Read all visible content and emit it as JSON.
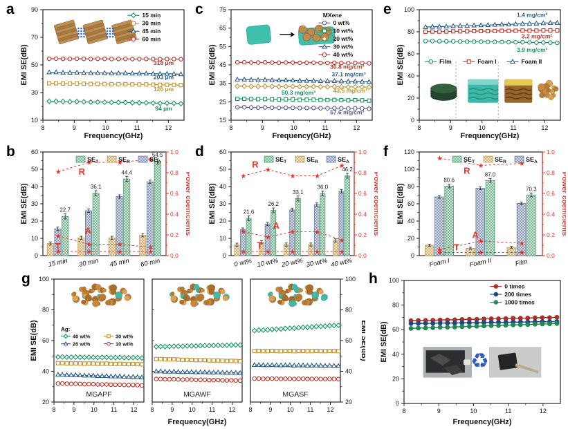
{
  "figure_title": "EMI shielding performance multi-panel figure",
  "axis": {
    "xlabel": "Frequency(GHz)",
    "ylabel": "EMI SE(dB)",
    "right_label": "Power coefficients"
  },
  "colors": {
    "green": "#15965f",
    "gold": "#c2932f",
    "blue": "#2a5d8c",
    "red": "#bf352b",
    "navy": "#5b5c92",
    "power_red": "#e8352a",
    "bar_green": "#4e9d6f",
    "bar_gold": "#c09a4c",
    "bar_blue": "#64799c",
    "h_red": "#a93026",
    "h_blue": "#1f4788",
    "h_green": "#1e8a4f"
  },
  "chart_data": [
    {
      "panel": "a",
      "letter": "a",
      "type": "line",
      "xlabel": "Frequency(GHz)",
      "ylabel": "EMI SE(dB)",
      "xlim": [
        8,
        12.5
      ],
      "xticks": [
        8,
        9,
        10,
        11,
        12
      ],
      "ylim": [
        10,
        90
      ],
      "yticks": [
        10,
        30,
        50,
        70,
        90
      ],
      "x_start": 8.2,
      "x_end": 12.4,
      "n_points": 20,
      "series": [
        {
          "name": "60 min",
          "marker": "circle",
          "color": "#bf352b",
          "y_start": 54.5,
          "y_end": 54.2
        },
        {
          "name": "45 min",
          "marker": "triangle",
          "color": "#2a5d8c",
          "y_start": 44.7,
          "y_end": 43.4
        },
        {
          "name": "30 min",
          "marker": "square",
          "color": "#c2932f",
          "y_start": 36.7,
          "y_end": 35.5
        },
        {
          "name": "15 min",
          "marker": "diamond",
          "color": "#15965f",
          "y_start": 23.7,
          "y_end": 22.1
        }
      ],
      "legend": {
        "fx": 0.6,
        "fy": 0.02,
        "order": [
          3,
          2,
          1,
          0
        ]
      },
      "annotations": [
        {
          "text": "318 μm",
          "x": 11.85,
          "y": 50.0,
          "color": "#bf352b"
        },
        {
          "text": "203 μm",
          "x": 11.85,
          "y": 39.8,
          "color": "#2a5d8c"
        },
        {
          "text": "126 μm",
          "x": 11.85,
          "y": 31.0,
          "color": "#c2932f"
        },
        {
          "text": "94 μm",
          "x": 11.85,
          "y": 17.0,
          "color": "#15965f"
        }
      ],
      "inset": "stacks"
    },
    {
      "panel": "b",
      "letter": "b",
      "type": "bar",
      "ylabel": "EMI SE(dB)",
      "ylabel_right": "Power coefficients",
      "ylim": [
        0,
        60
      ],
      "yticks": [
        0,
        10,
        20,
        30,
        40,
        50,
        60
      ],
      "right_ticks": [
        "0.0",
        "0.2",
        "0.4",
        "0.6",
        "0.8",
        "1.0"
      ],
      "categories": [
        "15 min",
        "30 min",
        "45 min",
        "60 min"
      ],
      "series": [
        {
          "name": "SE",
          "sub": "R",
          "color": "#c09a4c",
          "values": [
            7.0,
            10.3,
            10.3,
            11.8
          ],
          "err": 0.9
        },
        {
          "name": "SE",
          "sub": "A",
          "color": "#64799c",
          "values": [
            15.5,
            26.0,
            34.2,
            42.7
          ],
          "err": 1.0
        },
        {
          "name": "SE",
          "sub": "T",
          "color": "#4e9d6f",
          "values": [
            22.7,
            36.1,
            44.4,
            54.5
          ],
          "err": 1.5
        }
      ],
      "legend_order": [
        2,
        0,
        1
      ],
      "bar_labels": [
        "22.7",
        "36.1",
        "44.4",
        "54.5"
      ],
      "power": {
        "R": [
          0.81,
          0.9,
          0.9,
          0.93
        ],
        "A": [
          0.19,
          0.11,
          0.11,
          0.08
        ],
        "T": [
          0.04,
          0.04,
          0.04,
          0.04
        ]
      },
      "power_letters": [
        {
          "text": "R",
          "fx": 0.29,
          "fy": 0.78
        },
        {
          "text": "A",
          "fx": 0.34,
          "fy": 0.21
        },
        {
          "text": "T",
          "fx": 0.1,
          "fy": 0.06
        }
      ]
    },
    {
      "panel": "c",
      "letter": "c",
      "type": "line",
      "xlabel": "Frequency(GHz)",
      "ylabel": "EMI SE(dB)",
      "xlim": [
        8,
        12.5
      ],
      "xticks": [
        8,
        9,
        10,
        11,
        12
      ],
      "ylim": [
        15,
        75
      ],
      "yticks": [
        15,
        25,
        35,
        45,
        55,
        65,
        75
      ],
      "x_start": 8.2,
      "x_end": 12.4,
      "n_points": 20,
      "series": [
        {
          "name": "40 wt%",
          "marker": "circle",
          "color": "#bf352b",
          "y_start": 46.4,
          "y_end": 46.0
        },
        {
          "name": "30 wt%",
          "marker": "triangle",
          "color": "#2a5d8c",
          "y_start": 37.1,
          "y_end": 35.9
        },
        {
          "name": "20 wt%",
          "marker": "diamond",
          "color": "#c2932f",
          "y_start": 33.4,
          "y_end": 33.0
        },
        {
          "name": "10 wt%",
          "marker": "square",
          "color": "#15965f",
          "y_start": 26.6,
          "y_end": 25.7
        },
        {
          "name": "0 wt%",
          "marker": "circle",
          "color": "#5b5c92",
          "y_start": 22.0,
          "y_end": 21.3
        }
      ],
      "legend": {
        "fx": 0.62,
        "fy": 0.02,
        "title": "MXene",
        "order": [
          4,
          3,
          2,
          1,
          0
        ]
      },
      "annotations": [
        {
          "text": "30.8 mg/cm³",
          "x": 11.7,
          "y": 43.0,
          "color": "#bf352b"
        },
        {
          "text": "37.1 mg/cm³",
          "x": 11.75,
          "y": 38.9,
          "color": "#2a5d8c"
        },
        {
          "text": "43.5 mg/cm³",
          "x": 11.8,
          "y": 30.0,
          "color": "#c2932f"
        },
        {
          "text": "50.3 mg/cm³",
          "x": 10.15,
          "y": 28.8,
          "color": "#15965f"
        },
        {
          "text": "57.6 mg/cm³",
          "x": 11.7,
          "y": 18.2,
          "color": "#5b5c92"
        }
      ],
      "inset": "mxene"
    },
    {
      "panel": "d",
      "letter": "d",
      "type": "bar",
      "ylabel": "EMI SE(dB)",
      "ylabel_right": "Power coefficients",
      "ylim": [
        0,
        60
      ],
      "yticks": [
        0,
        10,
        20,
        30,
        40,
        50,
        60
      ],
      "right_ticks": [
        "0.0",
        "0.2",
        "0.4",
        "0.6",
        "0.8",
        "1.0"
      ],
      "categories": [
        "0 wt%",
        "10 wt%",
        "20 wt%",
        "30 wt%",
        "40 wt%"
      ],
      "series": [
        {
          "name": "SE",
          "sub": "R",
          "color": "#c09a4c",
          "values": [
            6.3,
            7.7,
            6.4,
            6.4,
            8.8
          ],
          "err": 0.9
        },
        {
          "name": "SE",
          "sub": "A",
          "color": "#64799c",
          "values": [
            15.0,
            18.3,
            26.5,
            29.5,
            37.3
          ],
          "err": 1.0
        },
        {
          "name": "SE",
          "sub": "T",
          "color": "#4e9d6f",
          "values": [
            21.6,
            26.2,
            33.1,
            36.0,
            46.2
          ],
          "err": 1.4
        }
      ],
      "legend_order": [
        2,
        0,
        1
      ],
      "bar_labels": [
        "21.6",
        "26.2",
        "33.1",
        "36.0",
        "46.2"
      ],
      "power": {
        "R": [
          0.77,
          0.83,
          0.77,
          0.77,
          0.87
        ],
        "A": [
          0.23,
          0.18,
          0.23,
          0.23,
          0.15
        ],
        "T": [
          0.04,
          0.04,
          0.04,
          0.04,
          0.04
        ]
      },
      "power_letters": [
        {
          "text": "R",
          "fx": 0.17,
          "fy": 0.85
        },
        {
          "text": "A",
          "fx": 0.34,
          "fy": 0.26
        },
        {
          "text": "T",
          "fx": 0.21,
          "fy": 0.07
        }
      ]
    },
    {
      "panel": "e",
      "letter": "e",
      "type": "line",
      "xlabel": "Frequency(GHz)",
      "ylabel": "EMI SE(dB)",
      "xlim": [
        8,
        12.5
      ],
      "xticks": [
        8,
        9,
        10,
        11,
        12
      ],
      "ylim": [
        0,
        100
      ],
      "yticks": [
        0,
        20,
        40,
        60,
        80,
        100
      ],
      "x_start": 8.2,
      "x_end": 12.4,
      "n_points": 20,
      "series": [
        {
          "name": "Foam II",
          "marker": "triangle",
          "color": "#2a5d8c",
          "y_start": 84.3,
          "y_end": 88.2
        },
        {
          "name": "Foam I",
          "marker": "square",
          "color": "#bf352b",
          "y_start": 80.1,
          "y_end": 81.3
        },
        {
          "name": "Film",
          "marker": "circle",
          "color": "#15965f",
          "y_start": 71.6,
          "y_end": 70.1
        }
      ],
      "hlegend": {
        "fy": 0.47,
        "items": [
          {
            "label": "Film",
            "marker": "circle",
            "color": "#15965f",
            "fx": 0.04
          },
          {
            "label": "Foam I",
            "marker": "square",
            "color": "#bf352b",
            "fx": 0.31
          },
          {
            "label": "Foam II",
            "marker": "triangle",
            "color": "#2a5d8c",
            "fx": 0.62
          }
        ]
      },
      "separators": [
        9.17,
        10.52
      ],
      "annotations": [
        {
          "text": "1.4 mg/cm²",
          "x": 11.6,
          "y": 93.5,
          "color": "#2a5d8c"
        },
        {
          "text": "3.2 mg/cm²",
          "x": 11.75,
          "y": 74.0,
          "color": "#bf352b"
        },
        {
          "text": "3.9 mg/cm²",
          "x": 11.6,
          "y": 62.0,
          "color": "#15965f"
        }
      ],
      "inset": "foams"
    },
    {
      "panel": "f",
      "letter": "f",
      "type": "bar",
      "ylabel": "EMI SE(dB)",
      "ylabel_right": "Power coefficients",
      "ylim": [
        0,
        120
      ],
      "yticks": [
        0,
        20,
        40,
        60,
        80,
        100,
        120
      ],
      "right_ticks": [
        "0.0",
        "0.2",
        "0.4",
        "0.6",
        "0.8",
        "1.0"
      ],
      "categories": [
        "Foam I",
        "Foam II",
        "Film"
      ],
      "series": [
        {
          "name": "SE",
          "sub": "R",
          "color": "#c09a4c",
          "values": [
            12.0,
            8.5,
            9.5
          ],
          "err": 1.2
        },
        {
          "name": "SE",
          "sub": "A",
          "color": "#64799c",
          "values": [
            68.0,
            78.0,
            60.5
          ],
          "err": 1.6
        },
        {
          "name": "SE",
          "sub": "T",
          "color": "#4e9d6f",
          "values": [
            80.6,
            87.0,
            70.3
          ],
          "err": 2.2
        }
      ],
      "legend_order": [
        2,
        0,
        1
      ],
      "bar_labels": [
        "80.6",
        "87.0",
        "70.3"
      ],
      "power": {
        "R": [
          0.94,
          0.87,
          0.89
        ],
        "A": [
          0.06,
          0.14,
          0.12
        ],
        "T": [
          0.03,
          0.03,
          0.03
        ]
      },
      "power_letters": [
        {
          "text": "R",
          "fx": 0.36,
          "fy": 0.79
        },
        {
          "text": "A",
          "fx": 0.43,
          "fy": 0.17
        },
        {
          "text": "T",
          "fx": 0.28,
          "fy": 0.05
        }
      ]
    },
    {
      "panel": "g",
      "letter": "g",
      "type": "multiline",
      "xlabel": "Frequency(GHz)",
      "ylabel": "EMI SE(dB)",
      "ylabel_right": "EMI SE(dB)",
      "xlim": [
        8,
        12.5
      ],
      "xticks": [
        8,
        9,
        10,
        11,
        12
      ],
      "ylim": [
        20,
        100
      ],
      "yticks": [
        20,
        40,
        60,
        80,
        100
      ],
      "x_start": 8.2,
      "x_end": 12.4,
      "n_points": 20,
      "legend_title": "Ag:",
      "legend_items": [
        {
          "label": "40 wt%",
          "marker": "diamond",
          "color": "#15965f"
        },
        {
          "label": "30 wt%",
          "marker": "square",
          "color": "#c2932f"
        },
        {
          "label": "20 wt%",
          "marker": "triangle",
          "color": "#2a5d8c"
        },
        {
          "label": "10 wt%",
          "marker": "circle",
          "color": "#bf352b"
        }
      ],
      "subpanels": [
        {
          "title": "MGAPF",
          "teal_ratio": 0.06,
          "has_legend": true,
          "series": [
            {
              "marker": "diamond",
              "color": "#15965f",
              "y_start": 49.3,
              "y_end": 48.8
            },
            {
              "marker": "square",
              "color": "#c2932f",
              "y_start": 45.3,
              "y_end": 44.6
            },
            {
              "marker": "triangle",
              "color": "#2a5d8c",
              "y_start": 37.9,
              "y_end": 36.2
            },
            {
              "marker": "circle",
              "color": "#bf352b",
              "y_start": 32.1,
              "y_end": 30.9
            }
          ]
        },
        {
          "title": "MGAWF",
          "teal_ratio": 0.16,
          "series": [
            {
              "marker": "diamond",
              "color": "#15965f",
              "y_start": 56.0,
              "y_end": 57.2
            },
            {
              "marker": "square",
              "color": "#c2932f",
              "y_start": 48.0,
              "y_end": 46.6
            },
            {
              "marker": "triangle",
              "color": "#2a5d8c",
              "y_start": 40.0,
              "y_end": 39.0
            },
            {
              "marker": "circle",
              "color": "#bf352b",
              "y_start": 35.0,
              "y_end": 34.0
            }
          ]
        },
        {
          "title": "MGASF",
          "teal_ratio": 0.3,
          "series": [
            {
              "marker": "diamond",
              "color": "#15965f",
              "y_start": 66.5,
              "y_end": 70.0
            },
            {
              "marker": "square",
              "color": "#c2932f",
              "y_start": 53.2,
              "y_end": 53.2
            },
            {
              "marker": "triangle",
              "color": "#2a5d8c",
              "y_start": 44.2,
              "y_end": 43.6
            },
            {
              "marker": "circle",
              "color": "#bf352b",
              "y_start": 35.2,
              "y_end": 35.0
            }
          ]
        }
      ]
    },
    {
      "panel": "h",
      "letter": "h",
      "type": "line",
      "xlabel": "Frequency(GHz)",
      "ylabel": "EMI SE(dB)",
      "xlim": [
        8,
        12.5
      ],
      "xticks": [
        8,
        9,
        10,
        11,
        12
      ],
      "ylim": [
        0,
        100
      ],
      "yticks": [
        0,
        20,
        40,
        60,
        80,
        100
      ],
      "x_start": 8.2,
      "x_end": 12.4,
      "n_points": 21,
      "filled": true,
      "lw": 1.5,
      "series": [
        {
          "name": "0 times",
          "marker": "circle",
          "color": "#a93026",
          "y_start": 67.3,
          "y_end": 70.0
        },
        {
          "name": "200 times",
          "marker": "circle",
          "color": "#1f4788",
          "y_start": 65.0,
          "y_end": 66.6
        },
        {
          "name": "1000 times",
          "marker": "circle",
          "color": "#1e8a4f",
          "y_start": 61.0,
          "y_end": 65.0
        }
      ],
      "legend": {
        "fx": 0.55,
        "fy": 0.02,
        "order": [
          0,
          1,
          2
        ]
      },
      "annotations": [],
      "inset": "recycle",
      "recycle_icon": "♻"
    }
  ]
}
